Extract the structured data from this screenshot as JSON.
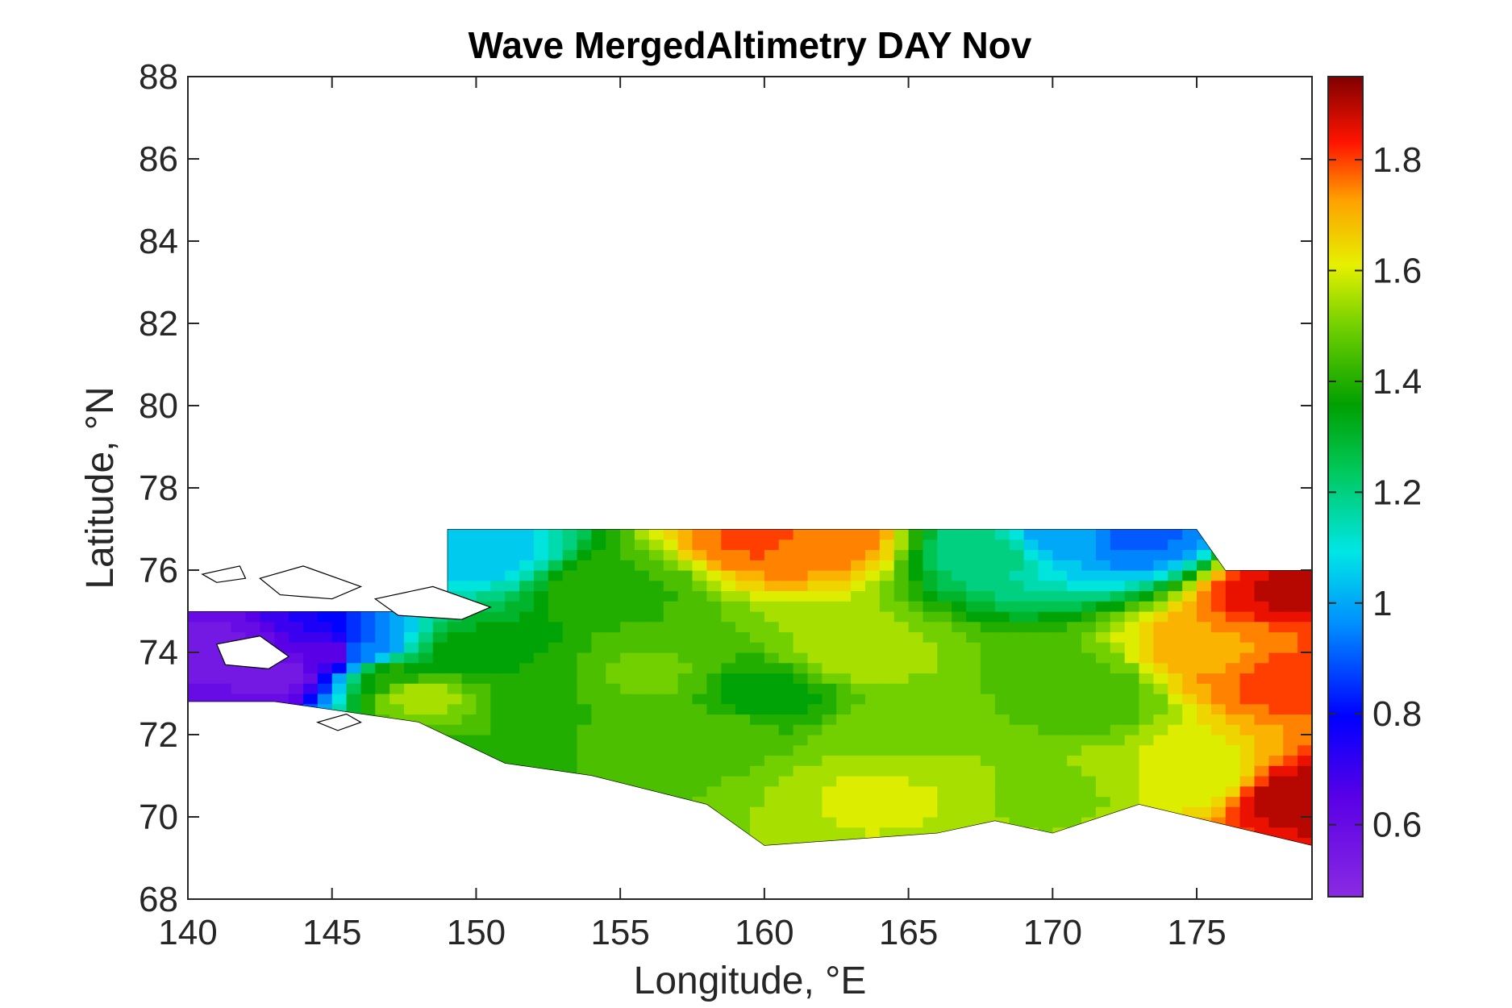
{
  "chart_data": {
    "type": "heatmap",
    "title": "Wave MergedAltimetry DAY Nov",
    "xlabel": "Longitude, °E",
    "ylabel": "Latitude, °N",
    "xlim": [
      140,
      179
    ],
    "ylim": [
      68,
      88
    ],
    "xticks": [
      140,
      145,
      150,
      155,
      160,
      165,
      170,
      175
    ],
    "yticks": [
      68,
      70,
      72,
      74,
      76,
      78,
      80,
      82,
      84,
      86,
      88
    ],
    "colorbar": {
      "range": [
        0.47,
        1.95
      ],
      "ticks": [
        0.6,
        0.8,
        1.0,
        1.2,
        1.4,
        1.6,
        1.8
      ],
      "tick_labels": [
        "0.6",
        "0.8",
        "1",
        "1.2",
        "1.4",
        "1.6",
        "1.8"
      ],
      "colormap": "jet-like: purple-blue-cyan-green-yellow-orange-red-darkred"
    },
    "grid": false,
    "field_notes": "Filled contour of wave height over the East Siberian Sea; land masked white with black coastline; no data north of 77°N",
    "samples": [
      {
        "lon": 141.0,
        "lat": 74.0,
        "value": 0.55
      },
      {
        "lon": 143.0,
        "lat": 73.5,
        "value": 0.55
      },
      {
        "lon": 145.0,
        "lat": 74.0,
        "value": 0.62
      },
      {
        "lon": 146.0,
        "lat": 74.0,
        "value": 0.95
      },
      {
        "lon": 147.0,
        "lat": 73.5,
        "value": 1.38
      },
      {
        "lon": 148.0,
        "lat": 73.0,
        "value": 1.55
      },
      {
        "lon": 150.0,
        "lat": 74.0,
        "value": 1.35
      },
      {
        "lon": 150.0,
        "lat": 76.5,
        "value": 1.05
      },
      {
        "lon": 152.0,
        "lat": 73.0,
        "value": 1.42
      },
      {
        "lon": 155.0,
        "lat": 75.5,
        "value": 1.42
      },
      {
        "lon": 156.0,
        "lat": 73.5,
        "value": 1.48
      },
      {
        "lon": 158.0,
        "lat": 72.0,
        "value": 1.47
      },
      {
        "lon": 160.0,
        "lat": 76.8,
        "value": 1.78
      },
      {
        "lon": 162.0,
        "lat": 76.8,
        "value": 1.75
      },
      {
        "lon": 160.0,
        "lat": 73.0,
        "value": 1.35
      },
      {
        "lon": 163.0,
        "lat": 74.0,
        "value": 1.55
      },
      {
        "lon": 164.0,
        "lat": 70.5,
        "value": 1.58
      },
      {
        "lon": 165.0,
        "lat": 72.0,
        "value": 1.52
      },
      {
        "lon": 168.0,
        "lat": 76.5,
        "value": 1.2
      },
      {
        "lon": 170.0,
        "lat": 76.8,
        "value": 1.0
      },
      {
        "lon": 173.0,
        "lat": 76.8,
        "value": 0.92
      },
      {
        "lon": 171.0,
        "lat": 73.0,
        "value": 1.44
      },
      {
        "lon": 170.0,
        "lat": 70.5,
        "value": 1.52
      },
      {
        "lon": 175.0,
        "lat": 71.0,
        "value": 1.58
      },
      {
        "lon": 176.0,
        "lat": 74.0,
        "value": 1.72
      },
      {
        "lon": 178.0,
        "lat": 73.5,
        "value": 1.8
      },
      {
        "lon": 178.5,
        "lat": 70.5,
        "value": 1.9
      },
      {
        "lon": 178.0,
        "lat": 75.5,
        "value": 1.88
      }
    ]
  },
  "colors": {
    "axis": "#262626",
    "land": "#ffffff",
    "coast": "#000000"
  }
}
